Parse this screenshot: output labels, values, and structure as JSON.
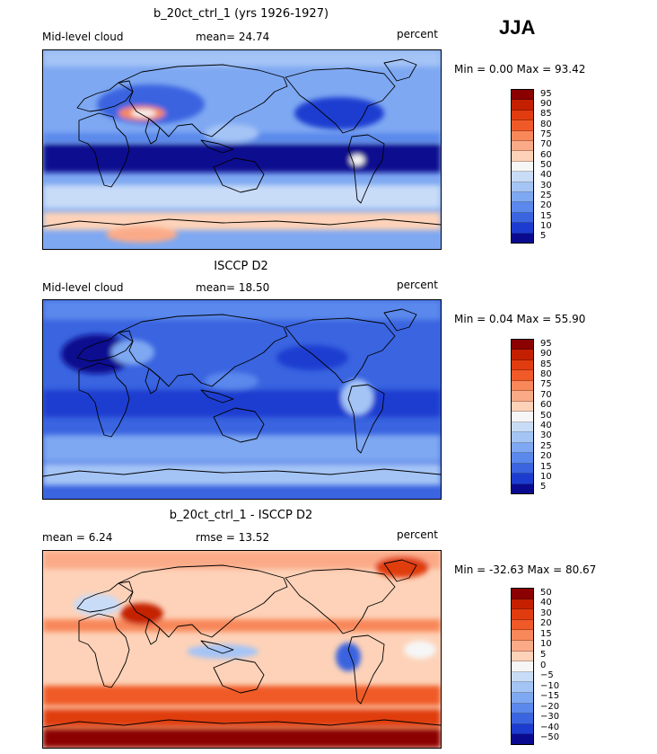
{
  "season": "JJA",
  "panels": [
    {
      "title": "b_20ct_ctrl_1 (yrs 1926-1927)",
      "left_label": "Mid-level cloud",
      "center_label": "mean=  24.74",
      "right_label": "percent",
      "range_text": "Min =   0.00 Max =  93.42",
      "colorbar_ticks": [
        "95",
        "90",
        "85",
        "80",
        "75",
        "70",
        "60",
        "50",
        "40",
        "30",
        "25",
        "20",
        "15",
        "10",
        "5"
      ],
      "colorbar_colors": [
        "#8b0000",
        "#c42000",
        "#e03c10",
        "#f05a28",
        "#f8875a",
        "#fbaa88",
        "#fdd2b8",
        "#f6f6f6",
        "#c8dcf8",
        "#a4c4f6",
        "#7ea8f2",
        "#5a88ec",
        "#3a64e0",
        "#1c3cd0",
        "#0a0a90"
      ],
      "map_style": "model"
    },
    {
      "title": "ISCCP D2",
      "left_label": "Mid-level cloud",
      "center_label": "mean=  18.50",
      "right_label": "percent",
      "range_text": "Min =   0.04 Max =  55.90",
      "colorbar_ticks": [
        "95",
        "90",
        "85",
        "80",
        "75",
        "70",
        "60",
        "50",
        "40",
        "30",
        "25",
        "20",
        "15",
        "10",
        "5"
      ],
      "colorbar_colors": [
        "#8b0000",
        "#c42000",
        "#e03c10",
        "#f05a28",
        "#f8875a",
        "#fbaa88",
        "#fdd2b8",
        "#f6f6f6",
        "#c8dcf8",
        "#a4c4f6",
        "#7ea8f2",
        "#5a88ec",
        "#3a64e0",
        "#1c3cd0",
        "#0a0a90"
      ],
      "map_style": "obs"
    },
    {
      "title": "b_20ct_ctrl_1 - ISCCP D2",
      "left_label": "mean =   6.24",
      "center_label": "rmse =  13.52",
      "right_label": "percent",
      "range_text": "Min = -32.63 Max =  80.67",
      "colorbar_ticks": [
        "50",
        "40",
        "30",
        "20",
        "15",
        "10",
        "5",
        "0",
        "−5",
        "−10",
        "−15",
        "−20",
        "−30",
        "−40",
        "−50"
      ],
      "colorbar_colors": [
        "#8b0000",
        "#c42000",
        "#e03c10",
        "#f05a28",
        "#f8875a",
        "#fbaa88",
        "#fdd2b8",
        "#f6f6f6",
        "#c8dcf8",
        "#a4c4f6",
        "#7ea8f2",
        "#5a88ec",
        "#3a64e0",
        "#1c3cd0",
        "#0a0a90"
      ],
      "map_style": "diff"
    }
  ]
}
